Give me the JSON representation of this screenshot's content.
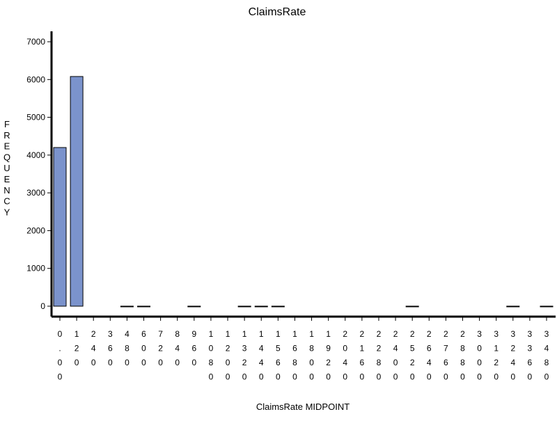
{
  "chart_data": {
    "type": "bar",
    "title": "ClaimsRate",
    "xlabel": "ClaimsRate  MIDPOINT",
    "ylabel": "FREQUENCY",
    "ylim": [
      0,
      7000
    ],
    "yticks": [
      "0",
      "1000",
      "2000",
      "3000",
      "4000",
      "5000",
      "6000",
      "7000"
    ],
    "categories": [
      "0.00",
      "120",
      "240",
      "360",
      "480",
      "600",
      "720",
      "840",
      "960",
      "1080",
      "1200",
      "1320",
      "1440",
      "1560",
      "1680",
      "1800",
      "1920",
      "2040",
      "2160",
      "2280",
      "2400",
      "2520",
      "2640",
      "2760",
      "2880",
      "3000",
      "3120",
      "3240",
      "3360",
      "3480"
    ],
    "values": [
      4200,
      6080,
      0,
      0,
      1,
      1,
      0,
      0,
      1,
      0,
      0,
      1,
      1,
      1,
      0,
      0,
      0,
      0,
      0,
      0,
      0,
      1,
      0,
      0,
      0,
      0,
      0,
      1,
      0,
      1
    ],
    "bar_color": "#7b93cc",
    "grid": false,
    "legend": "none"
  }
}
